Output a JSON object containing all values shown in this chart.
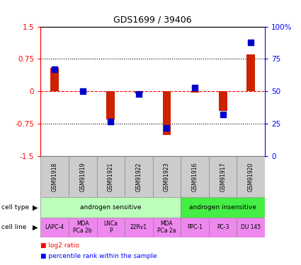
{
  "title": "GDS1699 / 39406",
  "samples": [
    "GSM91918",
    "GSM91919",
    "GSM91921",
    "GSM91922",
    "GSM91923",
    "GSM91916",
    "GSM91917",
    "GSM91920"
  ],
  "log2_ratio": [
    0.55,
    0.0,
    -0.65,
    -0.05,
    -1.0,
    -0.02,
    -0.45,
    0.85
  ],
  "percentile_rank": [
    67,
    50,
    27,
    48,
    22,
    53,
    32,
    88
  ],
  "ylim_left": [
    -1.5,
    1.5
  ],
  "yticks_left": [
    -1.5,
    -0.75,
    0,
    0.75,
    1.5
  ],
  "yticks_right": [
    0,
    25,
    50,
    75,
    100
  ],
  "cell_types": [
    {
      "label": "androgen sensitive",
      "start": 0,
      "end": 5,
      "color": "#BBFFBB"
    },
    {
      "label": "androgen insensitive",
      "start": 5,
      "end": 8,
      "color": "#44EE44"
    }
  ],
  "cell_lines": [
    {
      "label": "LAPC-4",
      "start": 0,
      "end": 1
    },
    {
      "label": "MDA\nPCa 2b",
      "start": 1,
      "end": 2
    },
    {
      "label": "LNCa\nP",
      "start": 2,
      "end": 3
    },
    {
      "label": "22Rv1",
      "start": 3,
      "end": 4
    },
    {
      "label": "MDA\nPCa 2a",
      "start": 4,
      "end": 5
    },
    {
      "label": "PPC-1",
      "start": 5,
      "end": 6
    },
    {
      "label": "PC-3",
      "start": 6,
      "end": 7
    },
    {
      "label": "DU 145",
      "start": 7,
      "end": 8
    }
  ],
  "cell_line_color": "#EE88EE",
  "bar_color": "#CC2200",
  "dot_color": "#0000CC",
  "sample_box_color": "#CCCCCC",
  "bar_width": 0.3,
  "dot_size": 35
}
